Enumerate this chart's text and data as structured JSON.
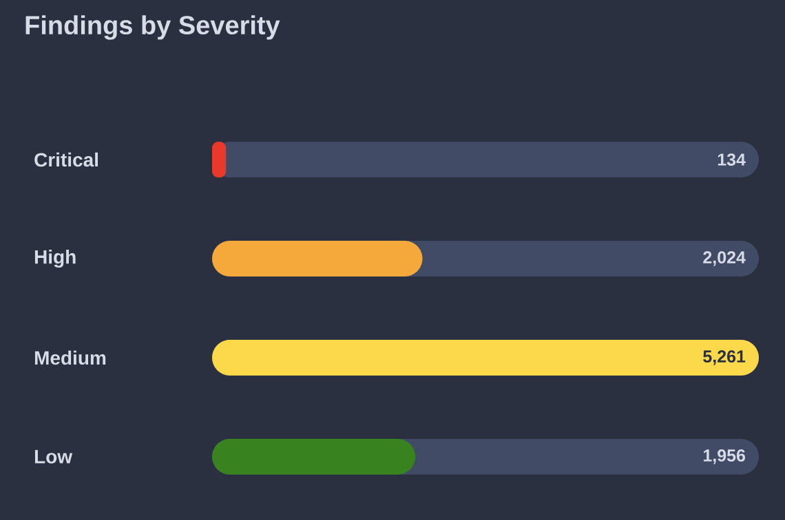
{
  "chart_data": {
    "type": "bar",
    "orientation": "horizontal",
    "title": "Findings by Severity",
    "categories": [
      "Critical",
      "High",
      "Medium",
      "Low"
    ],
    "values": [
      134,
      2024,
      5261,
      1956
    ],
    "colors": [
      "#e8392b",
      "#f4a93a",
      "#fcd94a",
      "#38821f"
    ],
    "value_labels": [
      "134",
      "2,024",
      "5,261",
      "1,956"
    ]
  }
}
